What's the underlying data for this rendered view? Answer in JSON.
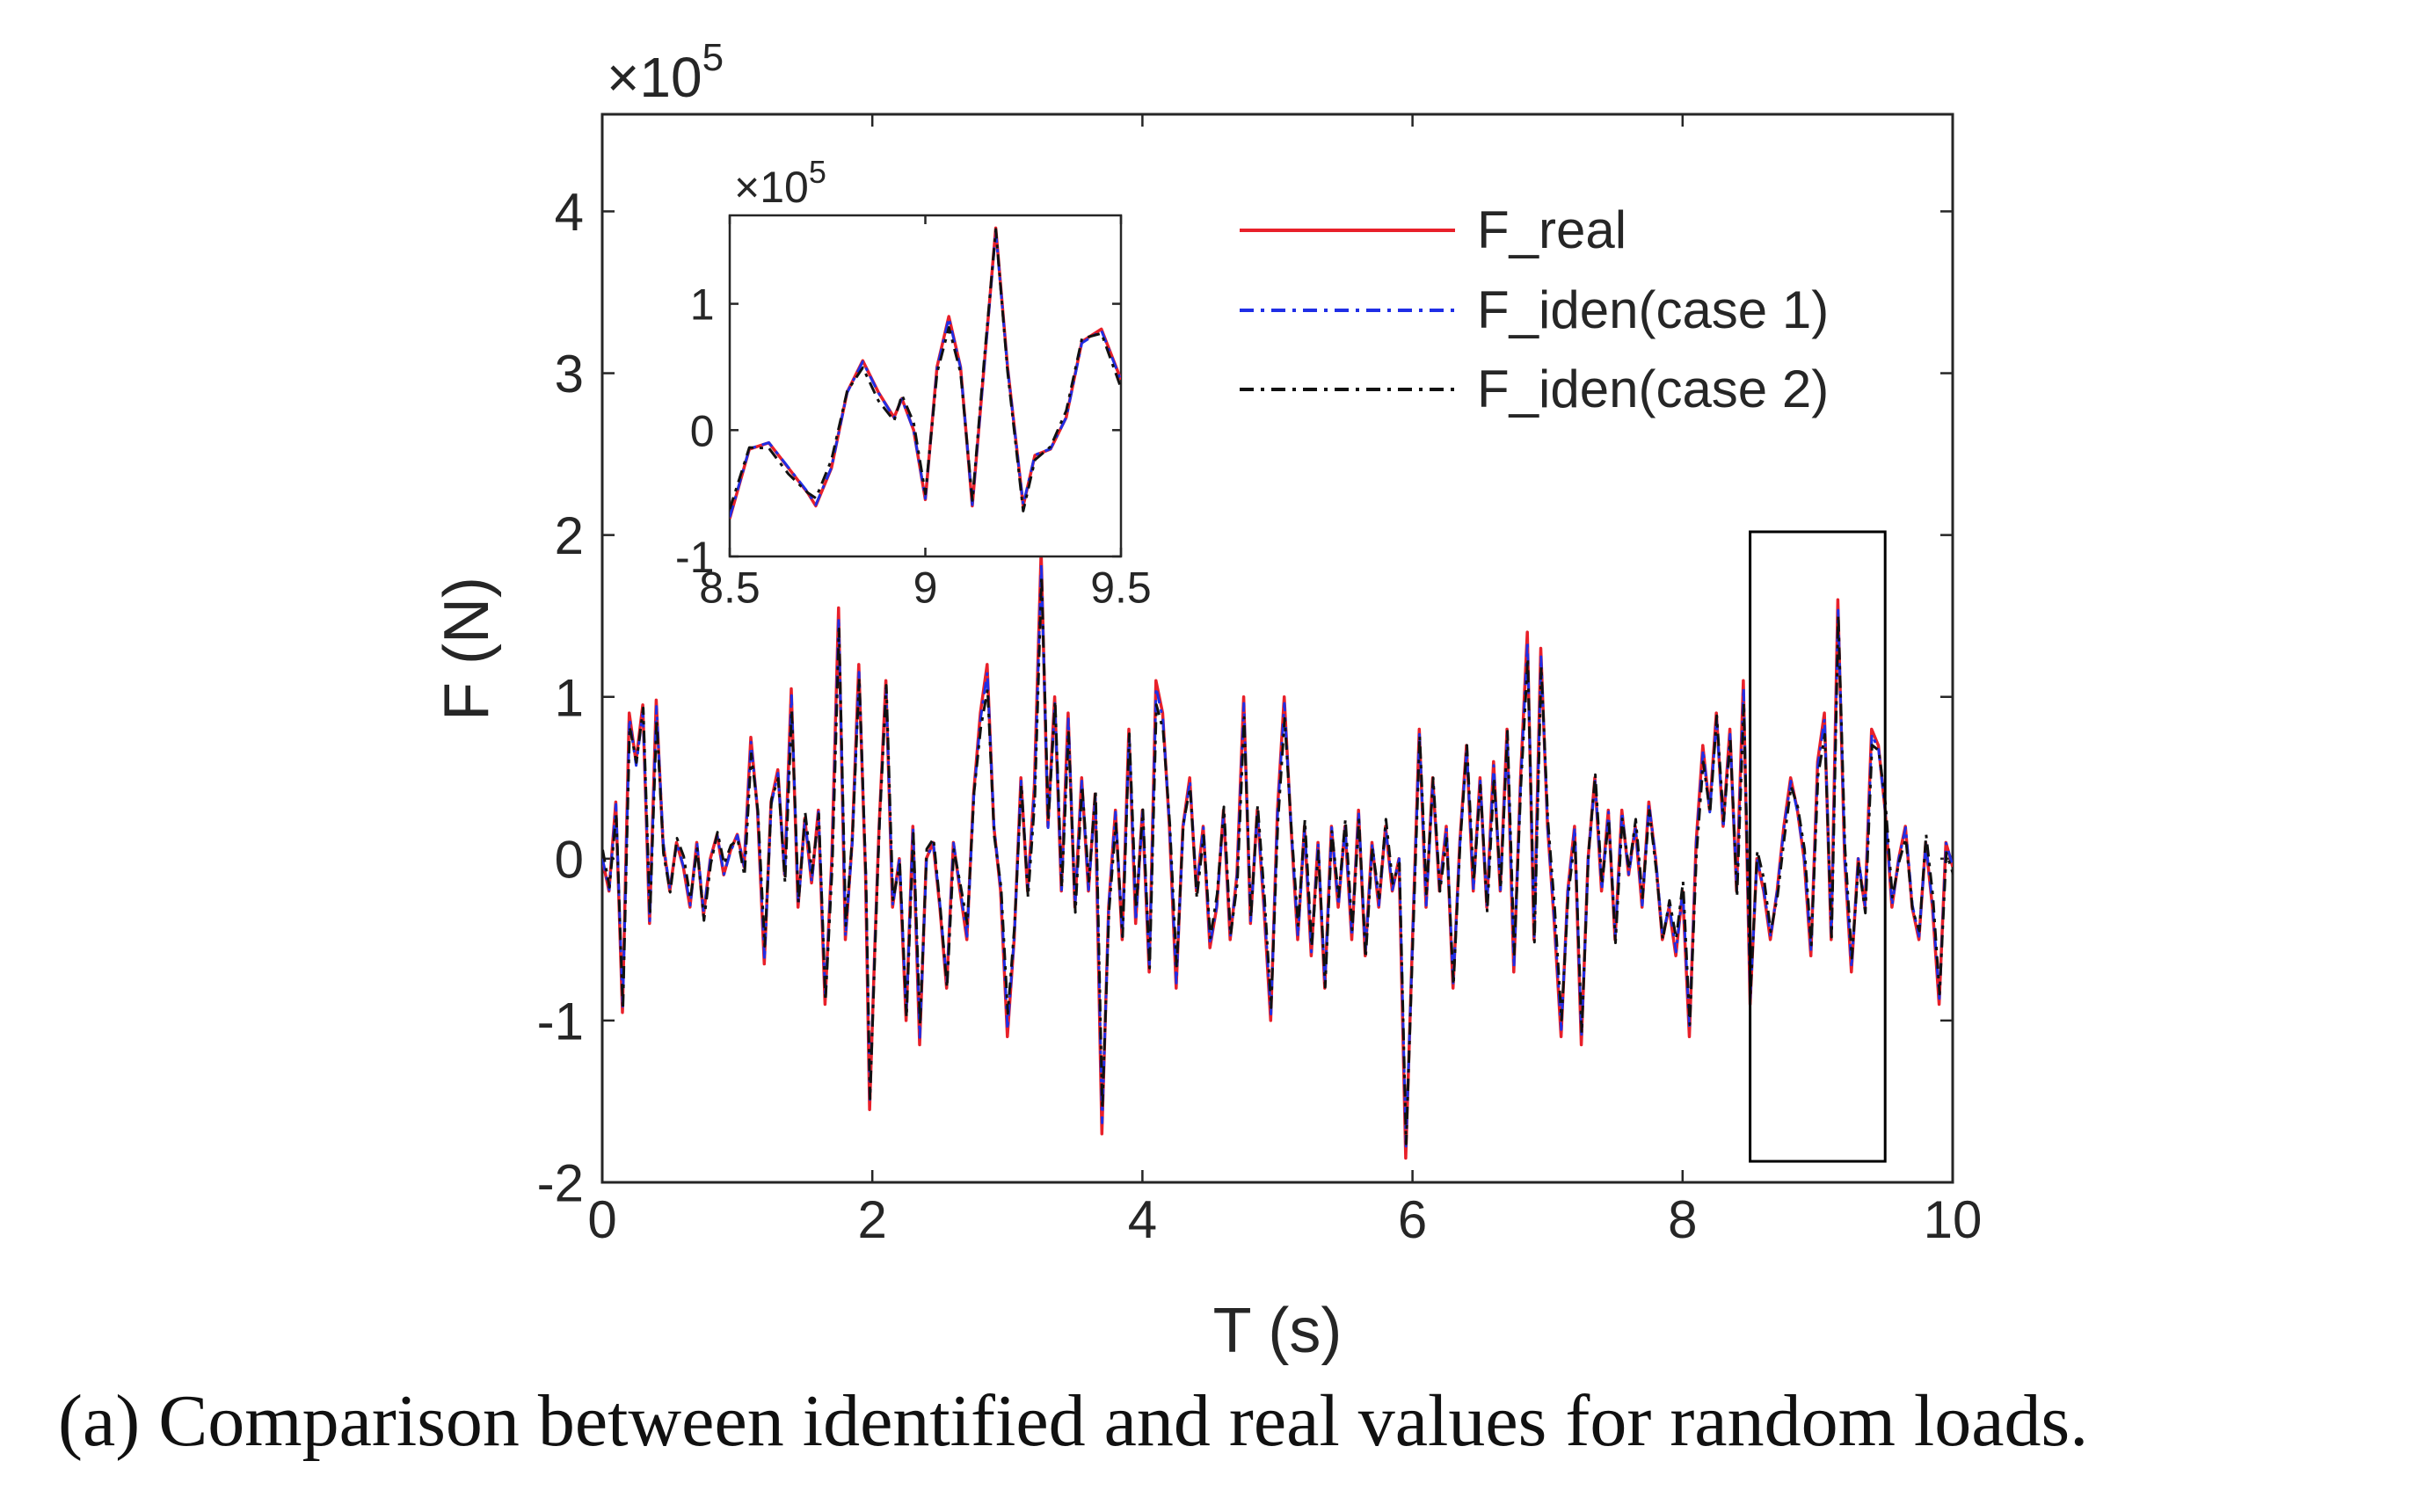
{
  "chart_data": [
    {
      "type": "line",
      "role": "main",
      "xlabel": "T (s)",
      "ylabel": "F (N)",
      "exponent_label": "×10",
      "exponent_power": "5",
      "xlim": [
        0,
        10
      ],
      "ylim": [
        -2,
        4.6
      ],
      "xticks": [
        0,
        2,
        4,
        6,
        8,
        10
      ],
      "xtick_labels": [
        "0",
        "2",
        "4",
        "6",
        "8",
        "10"
      ],
      "yticks": [
        -2,
        -1,
        0,
        1,
        2,
        3,
        4
      ],
      "ytick_labels": [
        "-2",
        "-1",
        "0",
        "1",
        "2",
        "3",
        "4"
      ],
      "highlight_region": {
        "x": [
          8.5,
          9.5
        ],
        "y": [
          -1.87,
          2.02
        ]
      },
      "series": [
        {
          "name": "F_real",
          "color": "#e8202a",
          "style": "solid",
          "points": [
            [
              0,
              0
            ],
            [
              0.05,
              -0.2
            ],
            [
              0.1,
              0.35
            ],
            [
              0.15,
              -0.95
            ],
            [
              0.2,
              0.9
            ],
            [
              0.25,
              0.6
            ],
            [
              0.3,
              0.95
            ],
            [
              0.35,
              -0.4
            ],
            [
              0.4,
              0.98
            ],
            [
              0.45,
              0.1
            ],
            [
              0.5,
              -0.2
            ],
            [
              0.55,
              0.1
            ],
            [
              0.6,
              -0.05
            ],
            [
              0.65,
              -0.3
            ],
            [
              0.7,
              0.1
            ],
            [
              0.75,
              -0.35
            ],
            [
              0.8,
              0.0
            ],
            [
              0.85,
              0.15
            ],
            [
              0.9,
              -0.1
            ],
            [
              0.95,
              0.05
            ],
            [
              1.0,
              0.15
            ],
            [
              1.05,
              -0.05
            ],
            [
              1.1,
              0.75
            ],
            [
              1.15,
              0.3
            ],
            [
              1.2,
              -0.65
            ],
            [
              1.25,
              0.35
            ],
            [
              1.3,
              0.55
            ],
            [
              1.35,
              -0.1
            ],
            [
              1.4,
              1.05
            ],
            [
              1.45,
              -0.3
            ],
            [
              1.5,
              0.25
            ],
            [
              1.55,
              -0.15
            ],
            [
              1.6,
              0.3
            ],
            [
              1.65,
              -0.9
            ],
            [
              1.7,
              0.0
            ],
            [
              1.75,
              1.55
            ],
            [
              1.8,
              -0.5
            ],
            [
              1.85,
              0.1
            ],
            [
              1.9,
              1.2
            ],
            [
              1.95,
              -0.1
            ],
            [
              1.98,
              -1.55
            ],
            [
              2.02,
              -0.5
            ],
            [
              2.05,
              0.2
            ],
            [
              2.1,
              1.1
            ],
            [
              2.15,
              -0.3
            ],
            [
              2.2,
              0.0
            ],
            [
              2.25,
              -1.0
            ],
            [
              2.3,
              0.2
            ],
            [
              2.35,
              -1.15
            ],
            [
              2.4,
              0.0
            ],
            [
              2.45,
              0.1
            ],
            [
              2.5,
              -0.3
            ],
            [
              2.55,
              -0.8
            ],
            [
              2.6,
              0.1
            ],
            [
              2.65,
              -0.2
            ],
            [
              2.7,
              -0.5
            ],
            [
              2.75,
              0.4
            ],
            [
              2.8,
              0.9
            ],
            [
              2.85,
              1.2
            ],
            [
              2.9,
              0.2
            ],
            [
              2.95,
              -0.2
            ],
            [
              3.0,
              -1.1
            ],
            [
              3.05,
              -0.5
            ],
            [
              3.1,
              0.5
            ],
            [
              3.15,
              -0.2
            ],
            [
              3.2,
              0.45
            ],
            [
              3.25,
              1.9
            ],
            [
              3.3,
              0.2
            ],
            [
              3.35,
              1.0
            ],
            [
              3.4,
              -0.2
            ],
            [
              3.45,
              0.9
            ],
            [
              3.5,
              -0.3
            ],
            [
              3.55,
              0.5
            ],
            [
              3.6,
              -0.2
            ],
            [
              3.65,
              0.4
            ],
            [
              3.7,
              -1.7
            ],
            [
              3.75,
              -0.3
            ],
            [
              3.8,
              0.3
            ],
            [
              3.85,
              -0.5
            ],
            [
              3.9,
              0.8
            ],
            [
              3.95,
              -0.4
            ],
            [
              4.0,
              0.3
            ],
            [
              4.05,
              -0.7
            ],
            [
              4.1,
              1.1
            ],
            [
              4.15,
              0.9
            ],
            [
              4.2,
              0.2
            ],
            [
              4.25,
              -0.8
            ],
            [
              4.3,
              0.2
            ],
            [
              4.35,
              0.5
            ],
            [
              4.4,
              -0.2
            ],
            [
              4.45,
              0.2
            ],
            [
              4.5,
              -0.55
            ],
            [
              4.55,
              -0.3
            ],
            [
              4.6,
              0.3
            ],
            [
              4.65,
              -0.5
            ],
            [
              4.7,
              -0.1
            ],
            [
              4.75,
              1.0
            ],
            [
              4.8,
              -0.4
            ],
            [
              4.85,
              0.3
            ],
            [
              4.9,
              -0.3
            ],
            [
              4.95,
              -1.0
            ],
            [
              5.0,
              0.3
            ],
            [
              5.05,
              1.0
            ],
            [
              5.1,
              0.2
            ],
            [
              5.15,
              -0.5
            ],
            [
              5.2,
              0.2
            ],
            [
              5.25,
              -0.6
            ],
            [
              5.3,
              0.1
            ],
            [
              5.35,
              -0.8
            ],
            [
              5.4,
              0.2
            ],
            [
              5.45,
              -0.3
            ],
            [
              5.5,
              0.2
            ],
            [
              5.55,
              -0.5
            ],
            [
              5.6,
              0.3
            ],
            [
              5.65,
              -0.6
            ],
            [
              5.7,
              0.1
            ],
            [
              5.75,
              -0.3
            ],
            [
              5.8,
              0.2
            ],
            [
              5.85,
              -0.2
            ],
            [
              5.9,
              0.0
            ],
            [
              5.95,
              -1.85
            ],
            [
              6.0,
              -0.5
            ],
            [
              6.05,
              0.8
            ],
            [
              6.1,
              -0.3
            ],
            [
              6.15,
              0.5
            ],
            [
              6.2,
              -0.2
            ],
            [
              6.25,
              0.2
            ],
            [
              6.3,
              -0.8
            ],
            [
              6.35,
              0.1
            ],
            [
              6.4,
              0.7
            ],
            [
              6.45,
              -0.2
            ],
            [
              6.5,
              0.5
            ],
            [
              6.55,
              -0.3
            ],
            [
              6.6,
              0.6
            ],
            [
              6.65,
              -0.2
            ],
            [
              6.7,
              0.8
            ],
            [
              6.75,
              -0.7
            ],
            [
              6.8,
              0.5
            ],
            [
              6.85,
              1.4
            ],
            [
              6.9,
              -0.5
            ],
            [
              6.95,
              1.3
            ],
            [
              7.0,
              0.2
            ],
            [
              7.05,
              -0.4
            ],
            [
              7.1,
              -1.1
            ],
            [
              7.15,
              -0.2
            ],
            [
              7.2,
              0.2
            ],
            [
              7.25,
              -1.15
            ],
            [
              7.3,
              0.0
            ],
            [
              7.35,
              0.5
            ],
            [
              7.4,
              -0.2
            ],
            [
              7.45,
              0.3
            ],
            [
              7.5,
              -0.5
            ],
            [
              7.55,
              0.3
            ],
            [
              7.6,
              -0.1
            ],
            [
              7.65,
              0.2
            ],
            [
              7.7,
              -0.3
            ],
            [
              7.75,
              0.35
            ],
            [
              7.8,
              0.0
            ],
            [
              7.85,
              -0.5
            ],
            [
              7.9,
              -0.3
            ],
            [
              7.95,
              -0.6
            ],
            [
              8.0,
              -0.2
            ],
            [
              8.05,
              -1.1
            ],
            [
              8.1,
              0.1
            ],
            [
              8.15,
              0.7
            ],
            [
              8.2,
              0.3
            ],
            [
              8.25,
              0.9
            ],
            [
              8.3,
              0.2
            ],
            [
              8.35,
              0.8
            ],
            [
              8.4,
              -0.2
            ],
            [
              8.45,
              1.1
            ],
            [
              8.5,
              -0.9
            ],
            [
              8.55,
              0.0
            ],
            [
              8.6,
              -0.2
            ],
            [
              8.65,
              -0.5
            ],
            [
              8.7,
              -0.2
            ],
            [
              8.75,
              0.2
            ],
            [
              8.8,
              0.5
            ],
            [
              8.85,
              0.3
            ],
            [
              8.9,
              0.0
            ],
            [
              8.95,
              -0.6
            ],
            [
              9.0,
              0.6
            ],
            [
              9.05,
              0.9
            ],
            [
              9.1,
              -0.5
            ],
            [
              9.15,
              1.6
            ],
            [
              9.2,
              0.0
            ],
            [
              9.25,
              -0.7
            ],
            [
              9.3,
              0.0
            ],
            [
              9.35,
              -0.3
            ],
            [
              9.4,
              0.8
            ],
            [
              9.45,
              0.7
            ],
            [
              9.5,
              0.3
            ],
            [
              9.55,
              -0.3
            ],
            [
              9.6,
              0.0
            ],
            [
              9.65,
              0.2
            ],
            [
              9.7,
              -0.3
            ],
            [
              9.75,
              -0.5
            ],
            [
              9.8,
              0.1
            ],
            [
              9.85,
              -0.3
            ],
            [
              9.9,
              -0.9
            ],
            [
              9.95,
              0.1
            ],
            [
              10.0,
              -0.05
            ]
          ]
        },
        {
          "name": "F_iden(case 1)",
          "color": "#1f2ee6",
          "style": "dashdot",
          "offset": 0.08
        },
        {
          "name": "F_iden(case 2)",
          "color": "#111111",
          "style": "dashdot",
          "offset": 0.16,
          "noise": true
        }
      ],
      "legend": {
        "position": "top-right",
        "entries": [
          "F_real",
          "F_iden(case 1)",
          "F_iden(case 2)"
        ]
      }
    },
    {
      "type": "line",
      "role": "inset",
      "exponent_label": "×10",
      "exponent_power": "5",
      "xlim": [
        8.5,
        9.5
      ],
      "ylim": [
        -1,
        1.7
      ],
      "xticks": [
        8.5,
        9,
        9.5
      ],
      "xtick_labels": [
        "8.5",
        "9",
        "9.5"
      ],
      "yticks": [
        -1,
        0,
        1
      ],
      "ytick_labels": [
        "-1",
        "0",
        "1"
      ],
      "series": [
        {
          "name": "F_real",
          "color": "#e8202a",
          "style": "solid",
          "points": [
            [
              8.5,
              -0.7
            ],
            [
              8.55,
              -0.15
            ],
            [
              8.6,
              -0.1
            ],
            [
              8.65,
              -0.3
            ],
            [
              8.7,
              -0.5
            ],
            [
              8.72,
              -0.6
            ],
            [
              8.76,
              -0.3
            ],
            [
              8.8,
              0.3
            ],
            [
              8.84,
              0.55
            ],
            [
              8.88,
              0.3
            ],
            [
              8.92,
              0.1
            ],
            [
              8.94,
              0.25
            ],
            [
              8.97,
              0.0
            ],
            [
              9.0,
              -0.55
            ],
            [
              9.03,
              0.5
            ],
            [
              9.06,
              0.9
            ],
            [
              9.09,
              0.5
            ],
            [
              9.12,
              -0.6
            ],
            [
              9.15,
              0.5
            ],
            [
              9.18,
              1.6
            ],
            [
              9.21,
              0.5
            ],
            [
              9.25,
              -0.6
            ],
            [
              9.28,
              -0.2
            ],
            [
              9.32,
              -0.15
            ],
            [
              9.36,
              0.1
            ],
            [
              9.4,
              0.7
            ],
            [
              9.45,
              0.8
            ],
            [
              9.5,
              0.4
            ]
          ]
        },
        {
          "name": "F_iden(case 1)",
          "color": "#1f2ee6",
          "style": "dashdot",
          "offset": 0.03
        },
        {
          "name": "F_iden(case 2)",
          "color": "#111111",
          "style": "dashdot",
          "offset": 0.06,
          "noise": true
        }
      ]
    }
  ],
  "caption": "(a)  Comparison between identified and real values for random loads."
}
